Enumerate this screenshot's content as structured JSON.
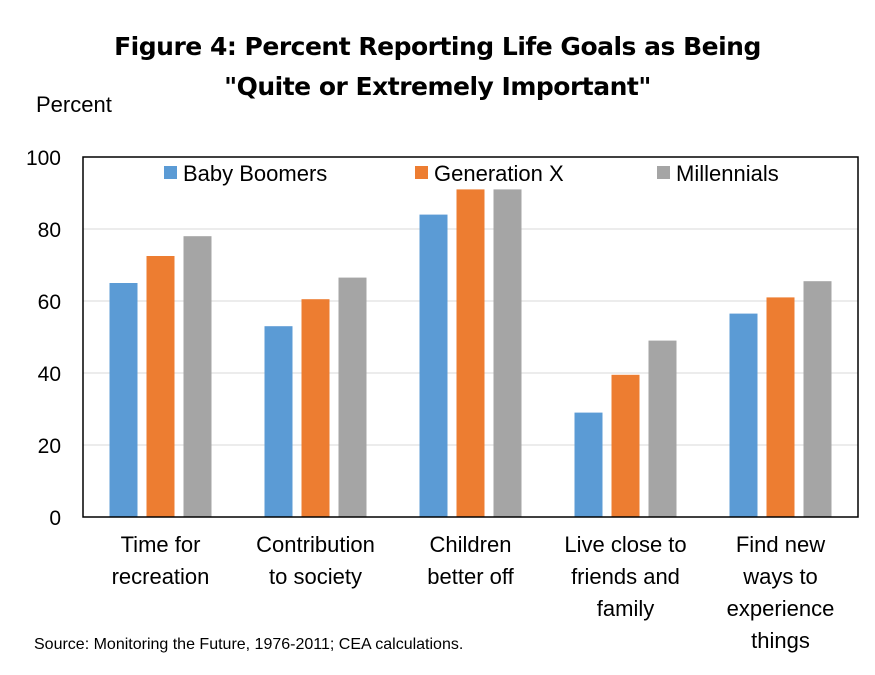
{
  "chart_data": {
    "type": "bar",
    "title_line1": "Figure 4: Percent Reporting Life Goals as Being",
    "title_line2": "\"Quite or Extremely Important\"",
    "ylabel": "Percent",
    "xlabel": "",
    "ylim": [
      0,
      100
    ],
    "yticks": [
      0,
      20,
      40,
      60,
      80,
      100
    ],
    "grid": true,
    "legend_position": "top",
    "categories": [
      [
        "Time for",
        "recreation"
      ],
      [
        "Contribution",
        "to society"
      ],
      [
        "Children",
        "better off"
      ],
      [
        "Live close to",
        "friends and",
        "family"
      ],
      [
        "Find new",
        "ways to",
        "experience",
        "things"
      ]
    ],
    "series": [
      {
        "name": "Baby Boomers",
        "color": "#5b9bd5",
        "values": [
          65,
          53,
          84,
          29,
          56.5
        ]
      },
      {
        "name": "Generation X",
        "color": "#ed7d31",
        "values": [
          72.5,
          60.5,
          91,
          39.5,
          61
        ]
      },
      {
        "name": "Millennials",
        "color": "#a5a5a5",
        "values": [
          78,
          66.5,
          91,
          49,
          65.5
        ]
      }
    ]
  },
  "source": "Source: Monitoring the Future, 1976-2011; CEA calculations."
}
